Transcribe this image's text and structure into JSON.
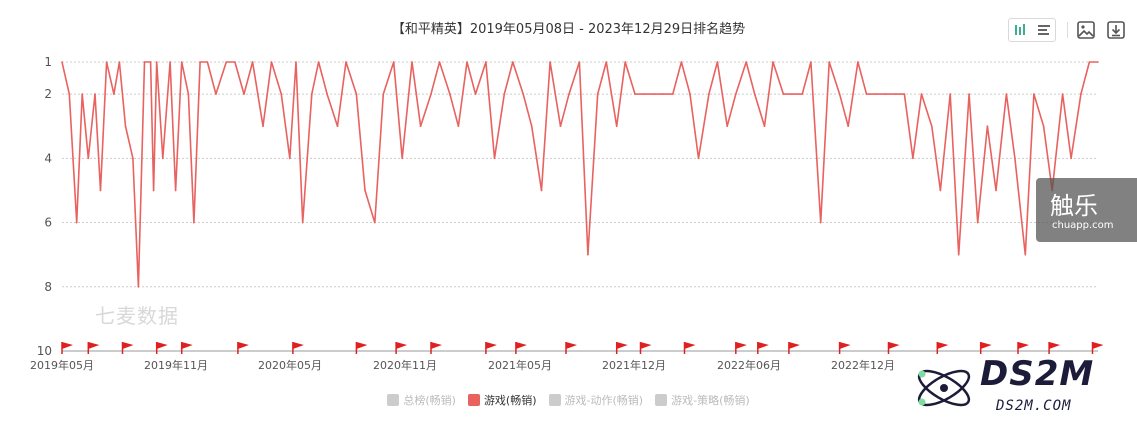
{
  "colors": {
    "series": "#e8625f",
    "flag": "#e02020",
    "axis": "#999999",
    "grid": "#cccccc"
  },
  "toolbar": {
    "view_toggle": [
      "bar-chart-icon",
      "list-icon"
    ],
    "actions": [
      "image-icon",
      "download-icon"
    ]
  },
  "legend": [
    {
      "label": "总榜(畅销)",
      "active": false
    },
    {
      "label": "游戏(畅销)",
      "active": true
    },
    {
      "label": "游戏-动作(畅销)",
      "active": false
    },
    {
      "label": "游戏-策略(畅销)",
      "active": false
    }
  ],
  "watermarks": {
    "qimai": "七麦数据",
    "chuapp_main": "触乐",
    "chuapp_sub": "chuapp.com",
    "ds2m_main": "DS2M",
    "ds2m_sub": "DS2M.COM"
  },
  "chart_data": {
    "type": "line",
    "title": "【和平精英】2019年05月08日 - 2023年12月29日排名趋势",
    "xlabel": "",
    "ylabel": "",
    "x_start": "2019-05-08",
    "x_end": "2023-12-29",
    "y_inverted": true,
    "ylim": [
      1,
      10
    ],
    "y_ticks": [
      1,
      2,
      4,
      6,
      8,
      10
    ],
    "x_tick_labels": [
      "2019年05月",
      "2019年11月",
      "2020年05月",
      "2020年11月",
      "2021年05月",
      "2021年12月",
      "2022年06月",
      "2022年12月"
    ],
    "grid": true,
    "legend_position": "bottom",
    "series": [
      {
        "name": "游戏(畅销)",
        "x": [
          "2019-05-08",
          "2019-05-20",
          "2019-06-01",
          "2019-06-10",
          "2019-06-20",
          "2019-07-01",
          "2019-07-10",
          "2019-07-20",
          "2019-08-01",
          "2019-08-10",
          "2019-08-20",
          "2019-09-01",
          "2019-09-10",
          "2019-09-20",
          "2019-09-30",
          "2019-10-05",
          "2019-10-10",
          "2019-10-20",
          "2019-11-01",
          "2019-11-10",
          "2019-11-20",
          "2019-12-01",
          "2019-12-10",
          "2019-12-20",
          "2020-01-01",
          "2020-01-15",
          "2020-02-01",
          "2020-02-15",
          "2020-03-01",
          "2020-03-15",
          "2020-04-01",
          "2020-04-15",
          "2020-05-01",
          "2020-05-15",
          "2020-05-25",
          "2020-06-05",
          "2020-06-20",
          "2020-07-01",
          "2020-07-15",
          "2020-08-01",
          "2020-08-15",
          "2020-09-01",
          "2020-09-15",
          "2020-10-01",
          "2020-10-15",
          "2020-11-01",
          "2020-11-15",
          "2020-12-01",
          "2020-12-15",
          "2021-01-01",
          "2021-01-15",
          "2021-02-01",
          "2021-02-15",
          "2021-03-01",
          "2021-03-15",
          "2021-04-01",
          "2021-04-15",
          "2021-05-01",
          "2021-05-15",
          "2021-06-01",
          "2021-06-15",
          "2021-07-01",
          "2021-07-15",
          "2021-08-01",
          "2021-08-15",
          "2021-09-01",
          "2021-09-15",
          "2021-10-01",
          "2021-10-15",
          "2021-11-01",
          "2021-11-15",
          "2021-12-01",
          "2021-12-15",
          "2022-01-01",
          "2022-01-15",
          "2022-02-01",
          "2022-02-15",
          "2022-03-01",
          "2022-03-15",
          "2022-04-01",
          "2022-04-15",
          "2022-05-01",
          "2022-05-15",
          "2022-06-01",
          "2022-06-15",
          "2022-07-01",
          "2022-07-15",
          "2022-08-01",
          "2022-08-15",
          "2022-09-01",
          "2022-09-15",
          "2022-10-01",
          "2022-10-15",
          "2022-11-01",
          "2022-11-15",
          "2022-12-01",
          "2022-12-15",
          "2023-01-01",
          "2023-01-15",
          "2023-02-01",
          "2023-02-15",
          "2023-03-01",
          "2023-03-15",
          "2023-04-01",
          "2023-04-15",
          "2023-05-01",
          "2023-05-15",
          "2023-06-01",
          "2023-06-15",
          "2023-07-01",
          "2023-07-15",
          "2023-08-01",
          "2023-08-15",
          "2023-09-01",
          "2023-09-15",
          "2023-10-01",
          "2023-10-15",
          "2023-11-01",
          "2023-11-15",
          "2023-12-01",
          "2023-12-15",
          "2023-12-29"
        ],
        "values": [
          1,
          2,
          6,
          2,
          4,
          2,
          5,
          1,
          2,
          1,
          3,
          4,
          8,
          1,
          1,
          5,
          1,
          4,
          1,
          5,
          1,
          2,
          6,
          1,
          1,
          2,
          1,
          1,
          2,
          1,
          3,
          1,
          2,
          4,
          1,
          6,
          2,
          1,
          2,
          3,
          1,
          2,
          5,
          6,
          2,
          1,
          4,
          1,
          3,
          2,
          1,
          2,
          3,
          1,
          2,
          1,
          4,
          2,
          1,
          2,
          3,
          5,
          1,
          3,
          2,
          1,
          7,
          2,
          1,
          3,
          1,
          2,
          2,
          2,
          2,
          2,
          1,
          2,
          4,
          2,
          1,
          3,
          2,
          1,
          2,
          3,
          1,
          2,
          2,
          2,
          1,
          6,
          1,
          2,
          3,
          1,
          2,
          2,
          2,
          2,
          2,
          4,
          2,
          3,
          5,
          2,
          7,
          2,
          6,
          3,
          5,
          2,
          4,
          7,
          2,
          3,
          5,
          2,
          4,
          2,
          1,
          1
        ]
      }
    ],
    "event_flags": [
      "2019-05-08",
      "2019-06-20",
      "2019-08-15",
      "2019-10-10",
      "2019-11-20",
      "2020-02-20",
      "2020-05-20",
      "2020-09-01",
      "2020-11-05",
      "2021-01-01",
      "2021-04-01",
      "2021-05-20",
      "2021-08-10",
      "2021-11-01",
      "2021-12-10",
      "2022-02-20",
      "2022-05-15",
      "2022-06-20",
      "2022-08-10",
      "2022-11-01",
      "2023-01-20",
      "2023-04-10",
      "2023-06-20",
      "2023-08-20",
      "2023-10-10",
      "2023-12-20"
    ]
  }
}
